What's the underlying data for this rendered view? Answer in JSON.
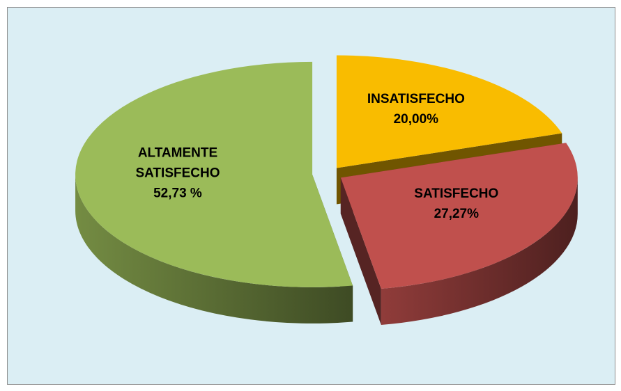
{
  "chart_data": {
    "type": "pie",
    "categories": [
      "INSATISFECHO",
      "SATISFECHO",
      "ALTAMENTE SATISFECHO"
    ],
    "values": [
      20.0,
      27.27,
      52.73
    ],
    "value_labels": [
      "20,00%",
      "27,27%",
      "52,73 %"
    ],
    "colors": [
      "#f9bc00",
      "#c0504d",
      "#9bbb59"
    ]
  }
}
